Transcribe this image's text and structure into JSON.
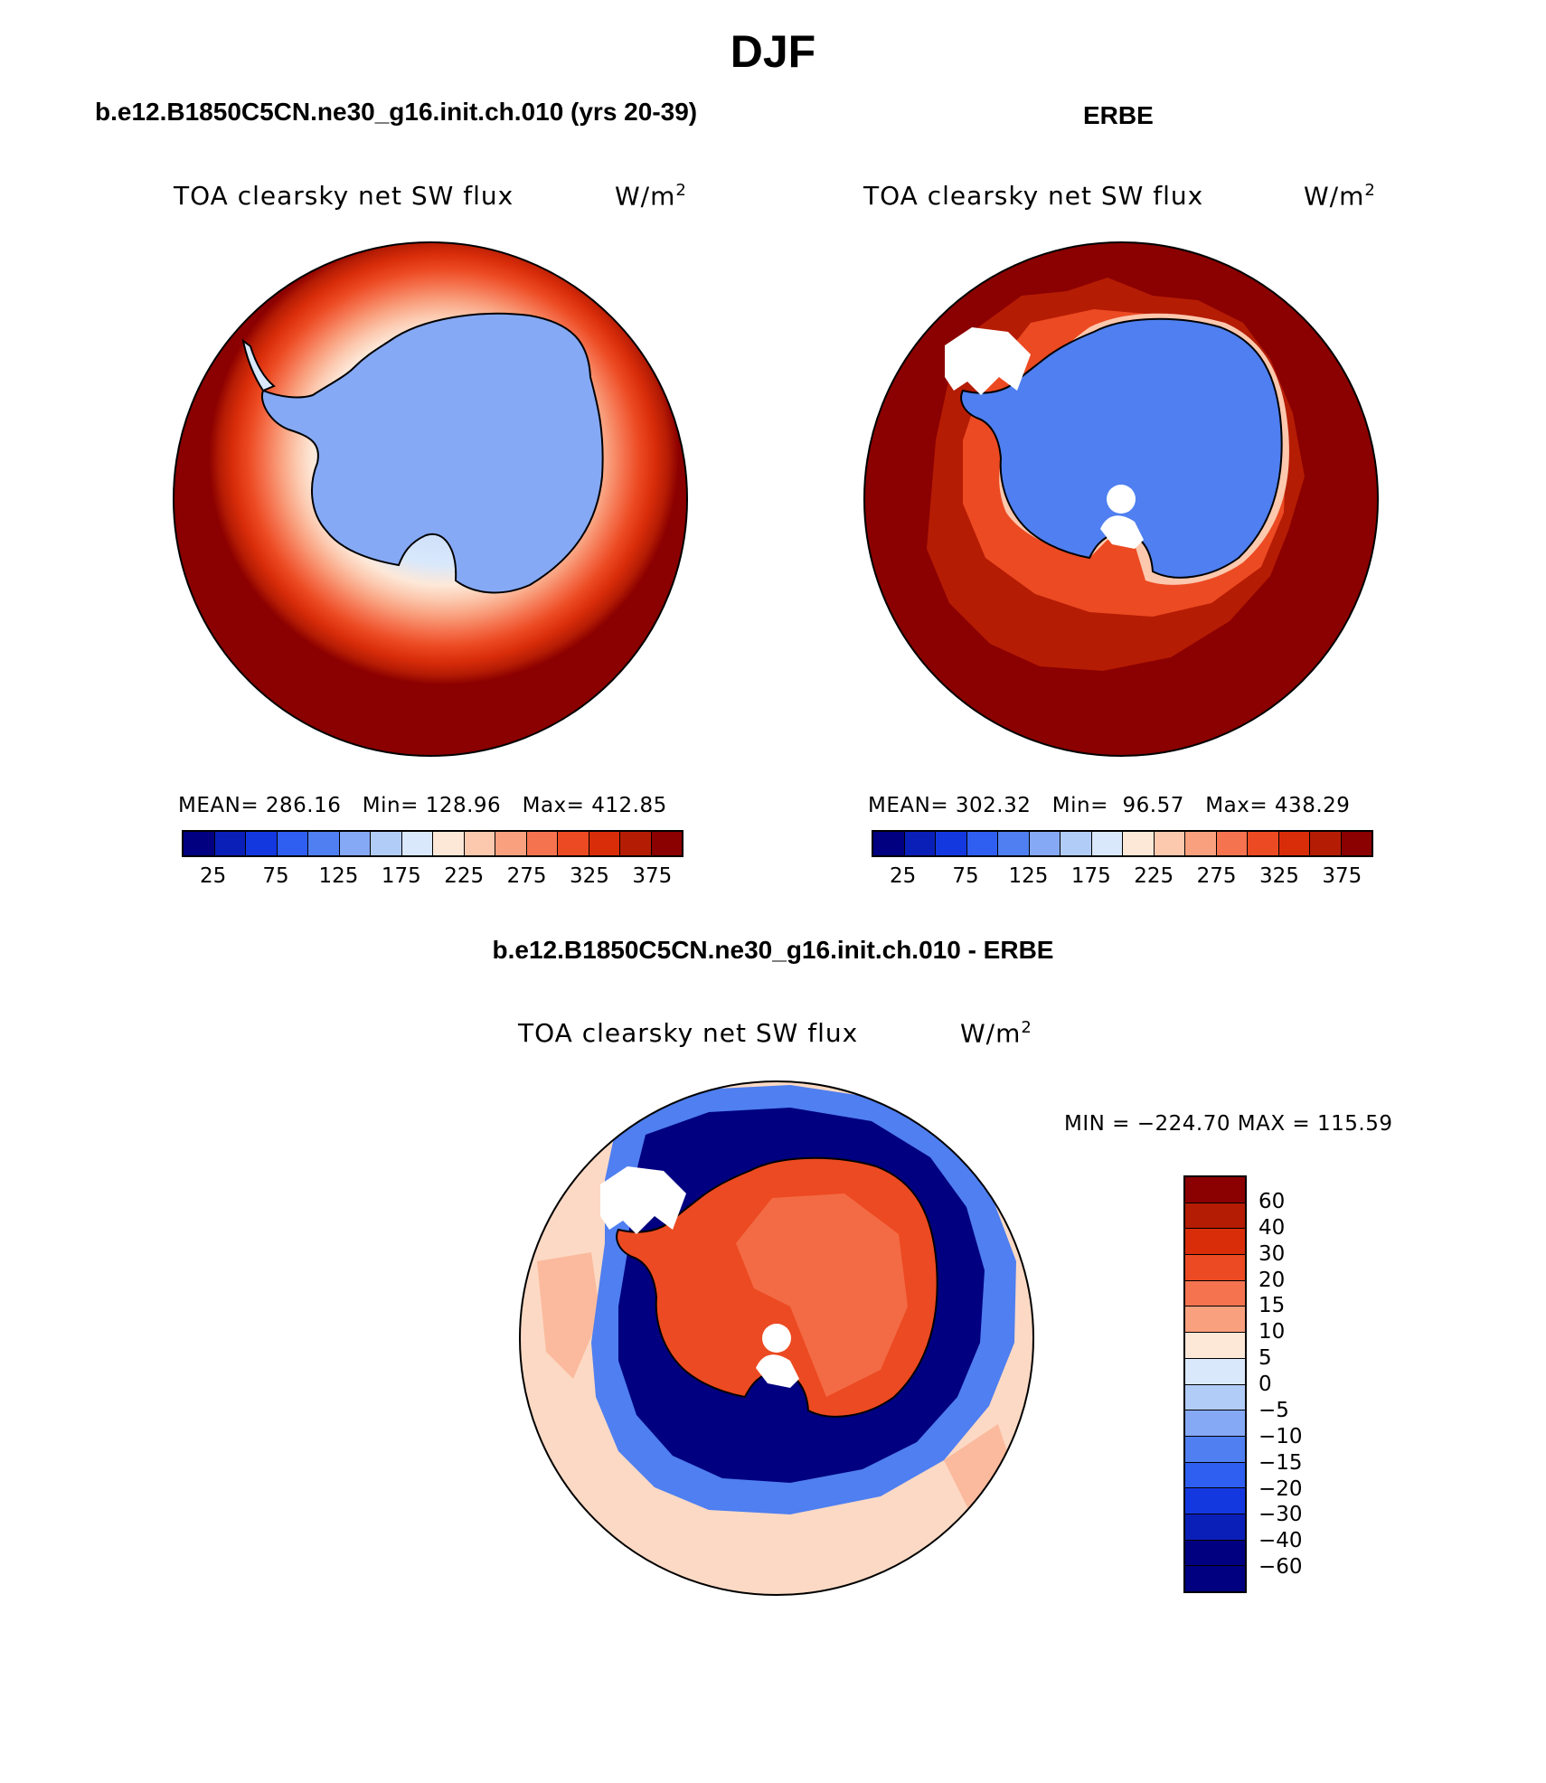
{
  "page": {
    "title": "DJF"
  },
  "panels": [
    {
      "title": "b.e12.B1850C5CN.ne30_g16.init.ch.010 (yrs 20-39)",
      "variable": "TOA clearsky net SW flux",
      "units": "W/m",
      "units_sup": "2",
      "stats": "MEAN= 286.16   Min= 128.96   Max= 412.85",
      "colorbar_ticks": [
        "25",
        "75",
        "125",
        "175",
        "225",
        "275",
        "325",
        "375"
      ]
    },
    {
      "title": "ERBE",
      "variable": "TOA clearsky net SW flux",
      "units": "W/m",
      "units_sup": "2",
      "stats": "MEAN= 302.32   Min=  96.57   Max= 438.29",
      "colorbar_ticks": [
        "25",
        "75",
        "125",
        "175",
        "225",
        "275",
        "325",
        "375"
      ]
    },
    {
      "title": "b.e12.B1850C5CN.ne30_g16.init.ch.010 - ERBE",
      "variable": "TOA clearsky net SW flux",
      "units": "W/m",
      "units_sup": "2",
      "stats": "MIN = −224.70 MAX = 115.59",
      "colorbar_ticks": [
        "60",
        "40",
        "30",
        "20",
        "15",
        "10",
        "5",
        "0",
        "−5",
        "−10",
        "−15",
        "−20",
        "−30",
        "−40",
        "−60"
      ]
    }
  ],
  "colors": {
    "abs_scale": [
      "#000080",
      "#0a1fb8",
      "#1438e0",
      "#2f5ff0",
      "#4f7ff0",
      "#86a9f5",
      "#b2ccf8",
      "#d9e8fb",
      "#fde8d8",
      "#fcc8ae",
      "#f9a07e",
      "#f5734f",
      "#ec4a22",
      "#d92d0a",
      "#b51c04",
      "#8b0000"
    ],
    "diff_scale": [
      "#8b0000",
      "#b51c04",
      "#d92d0a",
      "#ec4a22",
      "#f5734f",
      "#f9a07e",
      "#fde8d8",
      "#d9e8fb",
      "#b2ccf8",
      "#86a9f5",
      "#4f7ff0",
      "#2f5ff0",
      "#1438e0",
      "#0a1fb8",
      "#000080"
    ],
    "ocean_dark": "#8b0000",
    "diff_ocean": "#fcd9c4",
    "land_model": "#86a9f5",
    "land_erbe": "#4f7ff0",
    "land_diff": "#ec4a22",
    "diff_ring": "#000080"
  },
  "chart_data": [
    {
      "type": "heatmap",
      "projection": "south-polar-stereographic",
      "title": "b.e12.B1850C5CN.ne30_g16.init.ch.010 (yrs 20-39)",
      "variable": "TOA clearsky net SW flux",
      "units": "W/m2",
      "mean": 286.16,
      "min": 128.96,
      "max": 412.85,
      "levels": [
        25,
        50,
        75,
        100,
        125,
        150,
        175,
        200,
        225,
        250,
        275,
        300,
        325,
        350,
        375
      ],
      "colorbar": "horizontal"
    },
    {
      "type": "heatmap",
      "projection": "south-polar-stereographic",
      "title": "ERBE",
      "variable": "TOA clearsky net SW flux",
      "units": "W/m2",
      "mean": 302.32,
      "min": 96.57,
      "max": 438.29,
      "levels": [
        25,
        50,
        75,
        100,
        125,
        150,
        175,
        200,
        225,
        250,
        275,
        300,
        325,
        350,
        375
      ],
      "colorbar": "horizontal"
    },
    {
      "type": "heatmap",
      "projection": "south-polar-stereographic",
      "title": "b.e12.B1850C5CN.ne30_g16.init.ch.010 - ERBE",
      "variable": "TOA clearsky net SW flux",
      "units": "W/m2",
      "min": -224.7,
      "max": 115.59,
      "levels": [
        60,
        40,
        30,
        20,
        15,
        10,
        5,
        0,
        -5,
        -10,
        -15,
        -20,
        -30,
        -40,
        -60
      ],
      "colorbar": "vertical"
    }
  ]
}
